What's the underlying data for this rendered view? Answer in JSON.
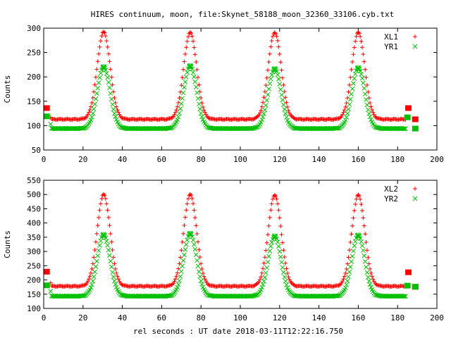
{
  "title": "HIRES continuum, moon, file:Skynet_58188_moon_32360_33106.cyb.txt",
  "xlabel": "rel seconds : UT date 2018-03-11T12:22:16.750",
  "colors": {
    "red": "#ff0000",
    "green": "#00c000"
  },
  "chart_data": [
    {
      "type": "scatter",
      "ylabel": "Counts",
      "xlim": [
        0,
        200
      ],
      "ylim": [
        50,
        300
      ],
      "xticks": [
        0,
        20,
        40,
        60,
        80,
        100,
        120,
        140,
        160,
        180,
        200
      ],
      "yticks": [
        50,
        100,
        150,
        200,
        250,
        300
      ],
      "legend_position": "top-right",
      "series": [
        {
          "name": "XL1",
          "marker": "plus",
          "color": "#ff0000",
          "baseline": 113,
          "peaks": [
            {
              "x": 30.5,
              "y": 292
            },
            {
              "x": 74.5,
              "y": 291
            },
            {
              "x": 117.5,
              "y": 291
            },
            {
              "x": 160.0,
              "y": 291
            }
          ],
          "x_range": [
            4,
            184
          ],
          "extra_points": [
            {
              "x": 1.5,
              "y": 136,
              "marker": "square"
            },
            {
              "x": 3.5,
              "y": 117
            },
            {
              "x": 185.5,
              "y": 136,
              "marker": "square"
            },
            {
              "x": 189.0,
              "y": 113,
              "marker": "square"
            }
          ]
        },
        {
          "name": "YR1",
          "marker": "x",
          "color": "#00c000",
          "baseline": 94,
          "peaks": [
            {
              "x": 30.5,
              "y": 220
            },
            {
              "x": 74.5,
              "y": 222
            },
            {
              "x": 117.5,
              "y": 216
            },
            {
              "x": 160.0,
              "y": 218
            }
          ],
          "x_range": [
            4,
            184
          ],
          "extra_points": [
            {
              "x": 1.5,
              "y": 119,
              "marker": "square"
            },
            {
              "x": 3.5,
              "y": 103
            },
            {
              "x": 185.0,
              "y": 117,
              "marker": "square"
            },
            {
              "x": 189.0,
              "y": 94,
              "marker": "square"
            }
          ]
        }
      ]
    },
    {
      "type": "scatter",
      "ylabel": "Counts",
      "xlim": [
        0,
        200
      ],
      "ylim": [
        100,
        550
      ],
      "xticks": [
        0,
        20,
        40,
        60,
        80,
        100,
        120,
        140,
        160,
        180,
        200
      ],
      "yticks": [
        100,
        150,
        200,
        250,
        300,
        350,
        400,
        450,
        500,
        550
      ],
      "legend_position": "top-right",
      "series": [
        {
          "name": "XL2",
          "marker": "plus",
          "color": "#ff0000",
          "baseline": 178,
          "peaks": [
            {
              "x": 30.5,
              "y": 500
            },
            {
              "x": 74.5,
              "y": 500
            },
            {
              "x": 117.5,
              "y": 498
            },
            {
              "x": 160.0,
              "y": 498
            }
          ],
          "x_range": [
            4,
            184
          ],
          "extra_points": [
            {
              "x": 1.5,
              "y": 229,
              "marker": "square"
            },
            {
              "x": 3.5,
              "y": 190
            },
            {
              "x": 185.5,
              "y": 227,
              "marker": "square"
            },
            {
              "x": 189.0,
              "y": 176,
              "marker": "square"
            }
          ]
        },
        {
          "name": "YR2",
          "marker": "x",
          "color": "#00c000",
          "baseline": 143,
          "peaks": [
            {
              "x": 30.5,
              "y": 358
            },
            {
              "x": 74.5,
              "y": 362
            },
            {
              "x": 117.5,
              "y": 353
            },
            {
              "x": 160.0,
              "y": 356
            }
          ],
          "x_range": [
            4,
            184
          ],
          "extra_points": [
            {
              "x": 1.5,
              "y": 181,
              "marker": "square"
            },
            {
              "x": 3.5,
              "y": 160
            },
            {
              "x": 185.0,
              "y": 180,
              "marker": "square"
            },
            {
              "x": 189.0,
              "y": 176,
              "marker": "square"
            }
          ]
        }
      ]
    }
  ]
}
